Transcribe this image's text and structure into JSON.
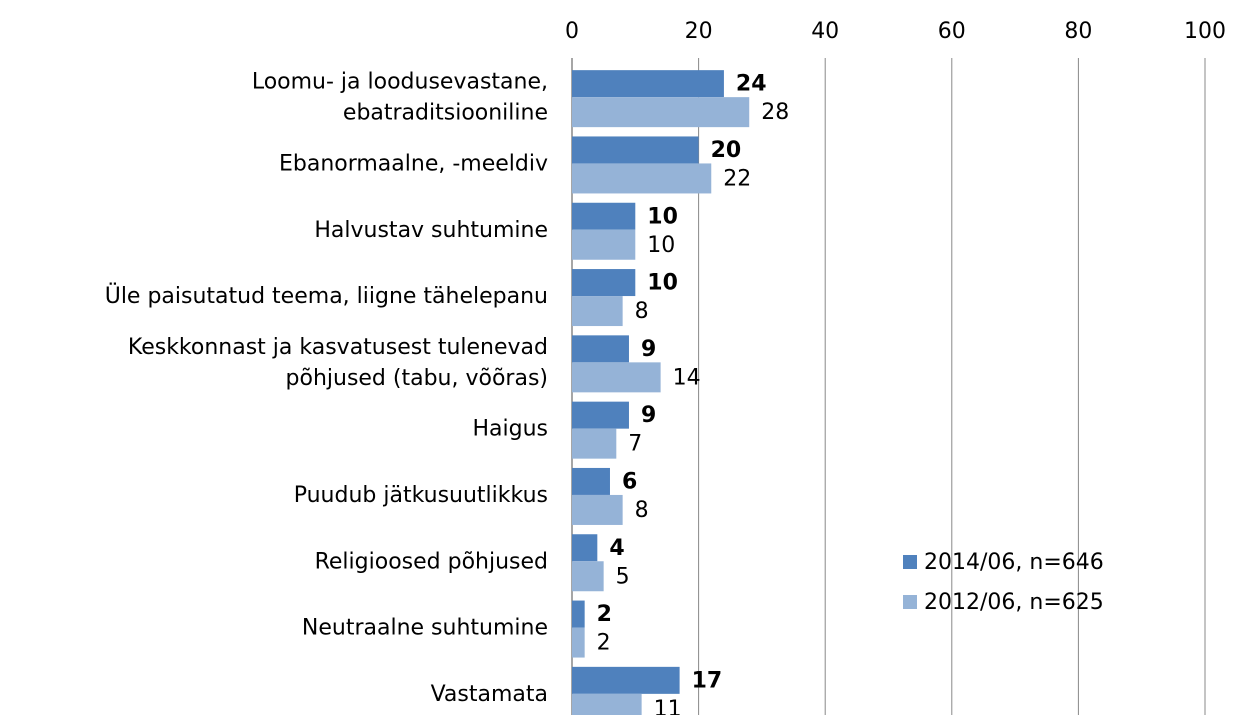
{
  "chart_data": {
    "type": "bar",
    "orientation": "horizontal",
    "categories": [
      "Loomu- ja loodusevastane,\nebatraditsiooniline",
      "Ebanormaalne, -meeldiv",
      "Halvustav suhtumine",
      "Üle paisutatud teema, liigne tähelepanu",
      "Keskkonnast ja kasvatusest tulenevad\npõhjused (tabu, võõras)",
      "Haigus",
      "Puudub jätkusuutlikkus",
      "Religioosed põhjused",
      "Neutraalne suhtumine",
      "Vastamata"
    ],
    "series": [
      {
        "name": "2014/06, n=646",
        "color": "#4f81bd",
        "values": [
          24,
          20,
          10,
          10,
          9,
          9,
          6,
          4,
          2,
          17
        ]
      },
      {
        "name": "2012/06, n=625",
        "color": "#95b3d7",
        "values": [
          28,
          22,
          10,
          8,
          14,
          7,
          8,
          5,
          2,
          11
        ]
      }
    ],
    "xlim": [
      0,
      100
    ],
    "xticks": [
      0,
      20,
      40,
      60,
      80,
      100
    ],
    "grid": true,
    "legend": "lower right"
  }
}
